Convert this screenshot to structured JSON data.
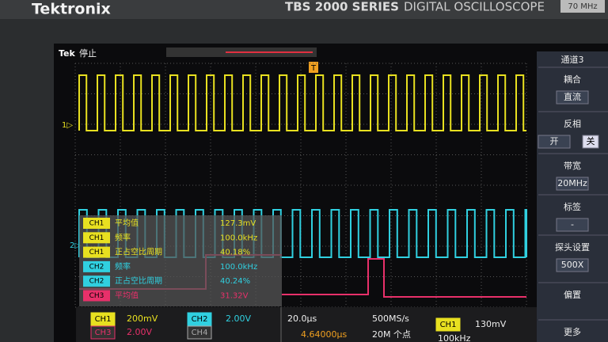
{
  "header": {
    "brand": "Tektronix",
    "series": "TBS 2000 SERIES",
    "product": "DIGITAL OSCILLOSCOPE",
    "bandwidth": "70 MHz"
  },
  "status": {
    "logo": "Tek",
    "state": "停止",
    "trigger": "T",
    "ch1_marker": "1▷",
    "ch2_marker": "2▷"
  },
  "menu": {
    "title": "通道3",
    "items": [
      {
        "label": "耦合",
        "value": "直流"
      },
      {
        "label": "反相",
        "value": "开",
        "alt": "关"
      },
      {
        "label": "带宽",
        "value": "20MHz"
      },
      {
        "label": "标签",
        "value": "-"
      },
      {
        "label": "探头设置",
        "value": "500X"
      },
      {
        "label": "偏置"
      },
      {
        "label": "更多"
      }
    ]
  },
  "measurements": [
    {
      "channel": "CH1",
      "name": "平均值",
      "value": "127.3mV"
    },
    {
      "channel": "CH1",
      "name": "频率",
      "value": "100.0kHz"
    },
    {
      "channel": "CH1",
      "name": "正占空比周期",
      "value": "40.18%"
    },
    {
      "channel": "CH2",
      "name": "频率",
      "value": "100.0kHz"
    },
    {
      "channel": "CH2",
      "name": "正占空比周期",
      "value": "40.24%"
    },
    {
      "channel": "CH3",
      "name": "平均值",
      "value": "31.32V"
    }
  ],
  "bottom_bar": {
    "ch1": "CH1",
    "ch1_scale": "200mV",
    "ch2": "CH2",
    "ch2_scale": "2.00V",
    "ch3": "CH3",
    "ch3_scale": "2.00V",
    "ch4": "CH4",
    "timebase": "20.0µs",
    "position": "4.64000µs",
    "sample_rate": "500MS/s",
    "record": "20M 个点",
    "trig_ch": "CH1",
    "trig_level": "130mV",
    "trig_freq": "100kHz"
  }
}
